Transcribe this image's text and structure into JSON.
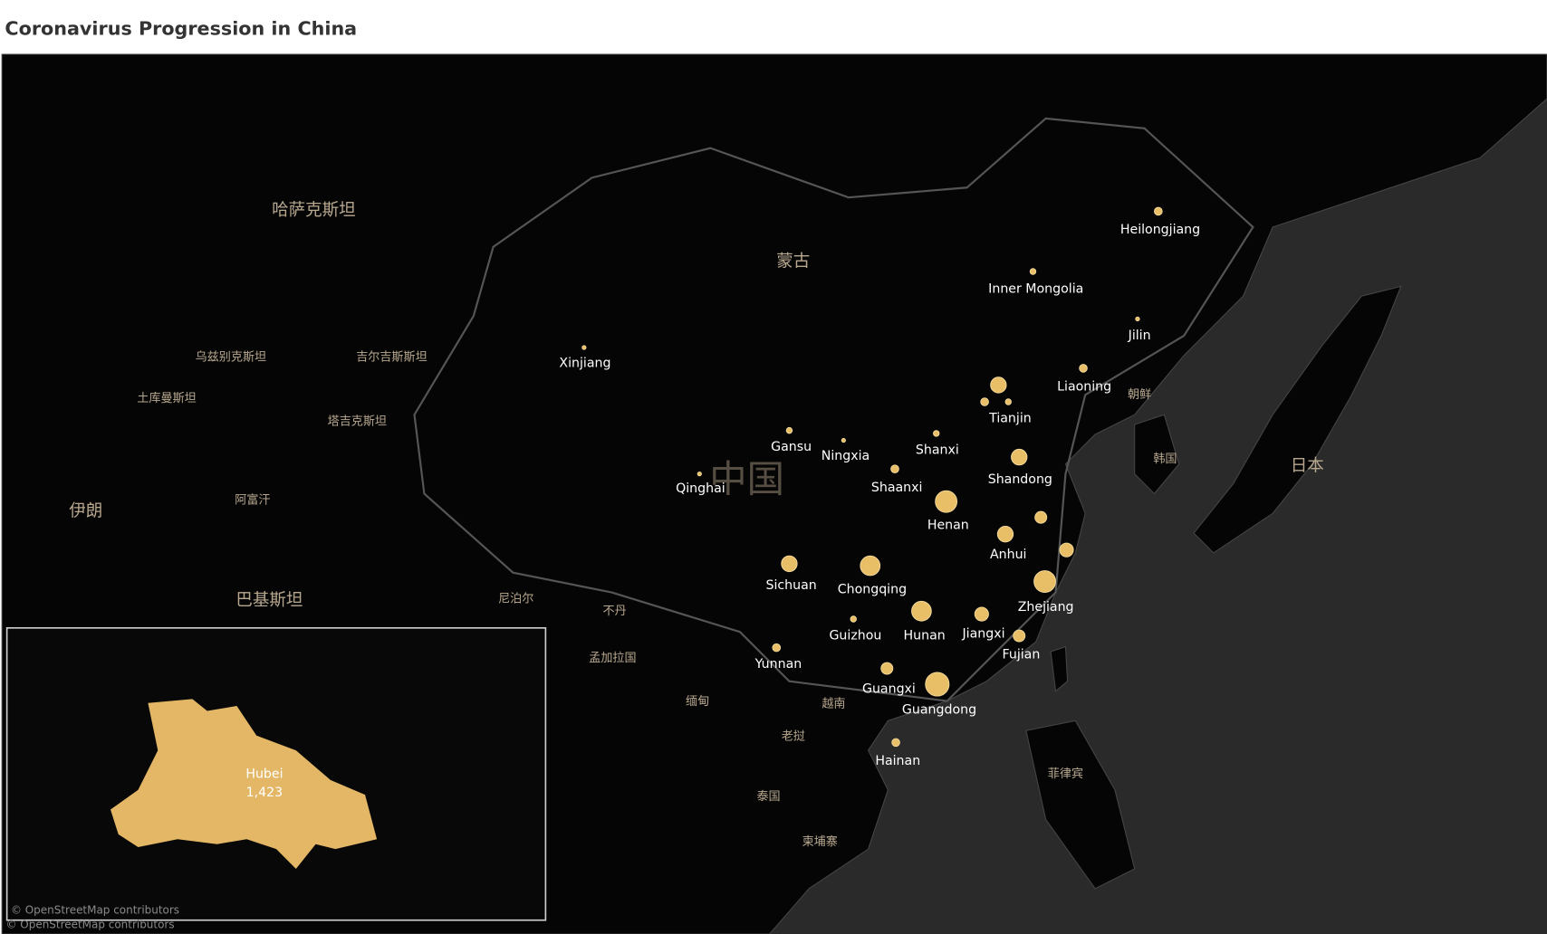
{
  "header": {
    "title": "Coronavirus Progression in China"
  },
  "provinces": [
    "Heilongjiang",
    "Inner Mongolia",
    "Jilin",
    "Liaoning",
    "Tianjin",
    "Xinjiang",
    "Gansu",
    "Ningxia",
    "Shanxi",
    "Shandong",
    "Qinghai",
    "Shaanxi",
    "Henan",
    "Anhui",
    "Sichuan",
    "Chongqing",
    "Zhejiang",
    "Guizhou",
    "Hunan",
    "Jiangxi",
    "Fujian",
    "Yunnan",
    "Guangxi",
    "Guangdong",
    "Hainan"
  ],
  "countries": [
    "哈萨克斯坦",
    "蒙古",
    "乌兹别克斯坦",
    "吉尔吉斯斯坦",
    "土库曼斯坦",
    "塔吉克斯坦",
    "伊朗",
    "阿富汗",
    "巴基斯坦",
    "尼泊尔",
    "不丹",
    "孟加拉国",
    "缅甸",
    "越南",
    "老挝",
    "泰国",
    "柬埔寨",
    "菲律宾",
    "朝鲜",
    "韩国",
    "日本",
    "中国"
  ],
  "inset": {
    "name": "Hubei",
    "value": 1423,
    "value_label": "1,423"
  },
  "attribution": "© OpenStreetMap contributors"
}
